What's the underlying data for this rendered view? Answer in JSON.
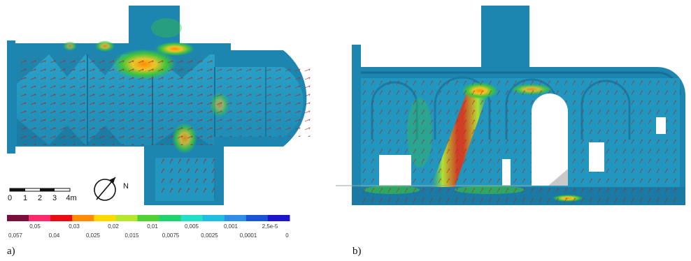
{
  "panel_labels": {
    "a": "a)",
    "b": "b)"
  },
  "scale_bar": {
    "labels": [
      "0",
      "1",
      "2",
      "3",
      "4m"
    ]
  },
  "north_label": "N",
  "legend": {
    "colors": [
      "#7a0f3c",
      "#ff2a6b",
      "#e80d14",
      "#ff8c00",
      "#ffd800",
      "#b8e62d",
      "#52d135",
      "#1fd470",
      "#20e0c7",
      "#1fbfe0",
      "#2f8ee8",
      "#1a54d6",
      "#1e14c9"
    ],
    "ticks_top": [
      "0,05",
      "0,03",
      "0,02",
      "0,01",
      "0,005",
      "0,001",
      "2,5e-5"
    ],
    "ticks_bottom": [
      "0,057",
      "0,04",
      "0,025",
      "0,015",
      "0,0075",
      "0,0025",
      "0,0001",
      "0"
    ]
  },
  "colors": {
    "base": "#1f8fb8",
    "dark": "#176f96",
    "vector": "#b2221d",
    "high": "#d83a1e",
    "mid": "#3cc43c",
    "warm": "#e9c62c"
  }
}
